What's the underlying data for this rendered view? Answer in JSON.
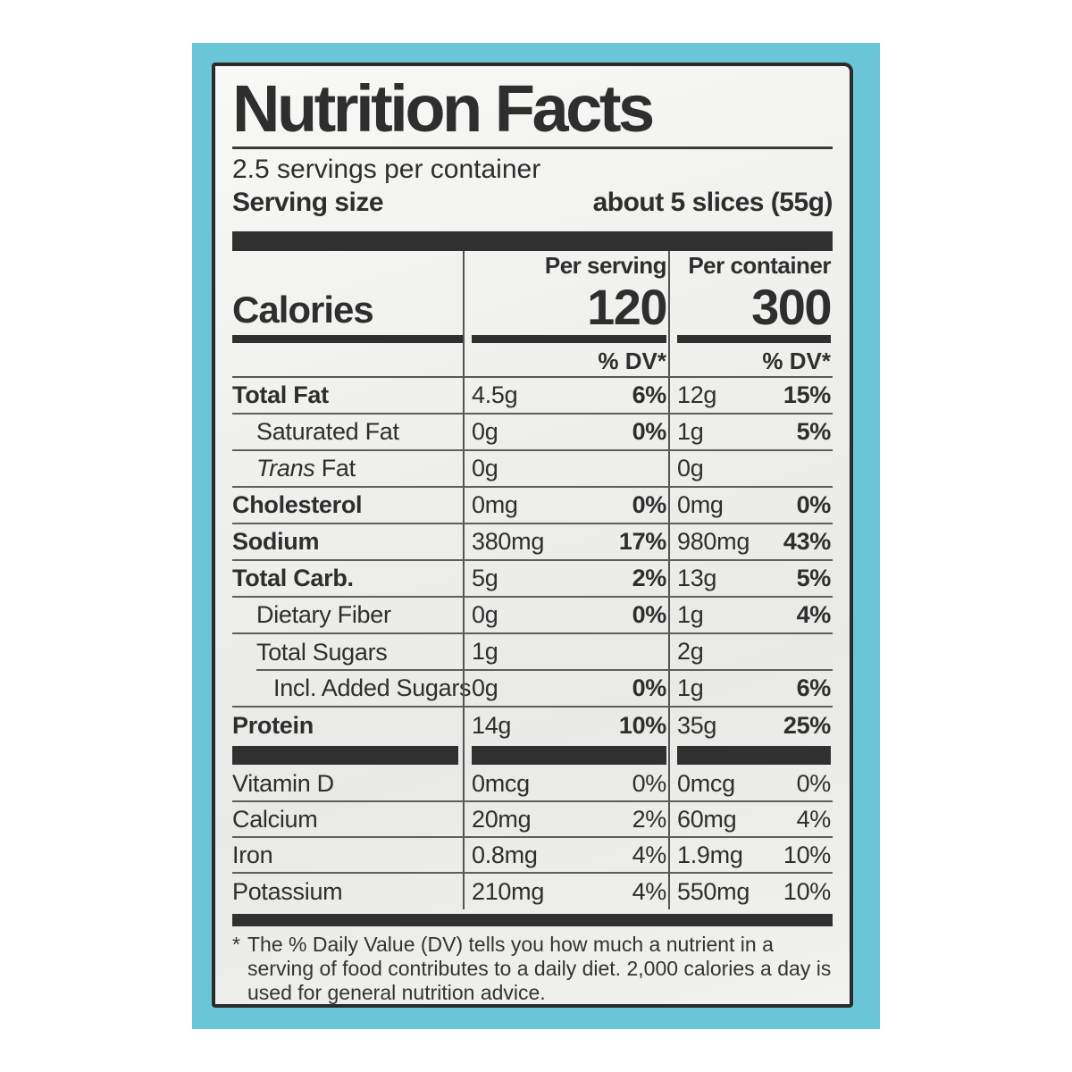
{
  "colors": {
    "package_teal": "#6bc5d8",
    "label_background": "#f2f2f0",
    "ink": "#2e2e2e"
  },
  "header": {
    "title": "Nutrition Facts",
    "servings_per_container": "2.5 servings per container",
    "serving_size_label": "Serving size",
    "serving_size_value": "about 5 slices (55g)"
  },
  "calories_section": {
    "col_serving_header": "Per serving",
    "col_container_header": "Per container",
    "label": "Calories",
    "per_serving_value": "120",
    "per_container_value": "300",
    "dv_header_serving": "% DV*",
    "dv_header_container": "% DV*"
  },
  "nutrient_rows": [
    {
      "name": "Total Fat",
      "serving_amount": "4.5g",
      "serving_dv": "6%",
      "container_amount": "12g",
      "container_dv": "15%"
    },
    {
      "name": "Saturated Fat",
      "serving_amount": "0g",
      "serving_dv": "0%",
      "container_amount": "1g",
      "container_dv": "5%"
    },
    {
      "name_italic": "Trans",
      "name_rest": " Fat",
      "serving_amount": "0g",
      "serving_dv": "",
      "container_amount": "0g",
      "container_dv": ""
    },
    {
      "name": "Cholesterol",
      "serving_amount": "0mg",
      "serving_dv": "0%",
      "container_amount": "0mg",
      "container_dv": "0%"
    },
    {
      "name": "Sodium",
      "serving_amount": "380mg",
      "serving_dv": "17%",
      "container_amount": "980mg",
      "container_dv": "43%"
    },
    {
      "name": "Total Carb.",
      "serving_amount": "5g",
      "serving_dv": "2%",
      "container_amount": "13g",
      "container_dv": "5%"
    },
    {
      "name": "Dietary Fiber",
      "serving_amount": "0g",
      "serving_dv": "0%",
      "container_amount": "1g",
      "container_dv": "4%"
    },
    {
      "name": "Total Sugars",
      "serving_amount": "1g",
      "serving_dv": "",
      "container_amount": "2g",
      "container_dv": ""
    },
    {
      "name": "Incl. Added Sugars",
      "serving_amount": "0g",
      "serving_dv": "0%",
      "container_amount": "1g",
      "container_dv": "6%"
    },
    {
      "name": "Protein",
      "serving_amount": "14g",
      "serving_dv": "10%",
      "container_amount": "35g",
      "container_dv": "25%"
    }
  ],
  "vitamin_rows": [
    {
      "name": "Vitamin D",
      "serving_amount": "0mcg",
      "serving_dv": "0%",
      "container_amount": "0mcg",
      "container_dv": "0%"
    },
    {
      "name": "Calcium",
      "serving_amount": "20mg",
      "serving_dv": "2%",
      "container_amount": "60mg",
      "container_dv": "4%"
    },
    {
      "name": "Iron",
      "serving_amount": "0.8mg",
      "serving_dv": "4%",
      "container_amount": "1.9mg",
      "container_dv": "10%"
    },
    {
      "name": "Potassium",
      "serving_amount": "210mg",
      "serving_dv": "4%",
      "container_amount": "550mg",
      "container_dv": "10%"
    }
  ],
  "footnote": {
    "marker": "*",
    "text": "The % Daily Value (DV) tells you how much a nutrient in a serving of food contributes to a daily diet. 2,000 calories a day is used for general nutrition advice."
  }
}
